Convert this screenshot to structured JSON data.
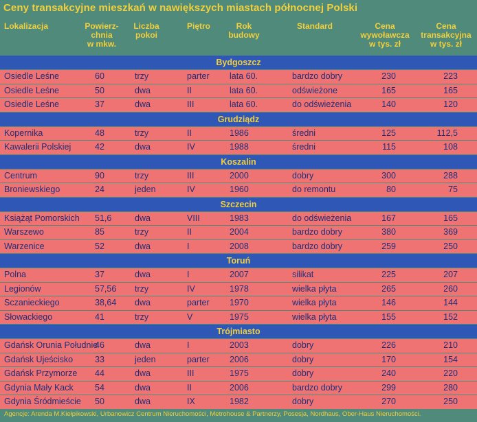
{
  "title": "Ceny transakcyjne mieszkań w nawiększych miastach północnej Polski",
  "headers": {
    "lokalizacja": [
      "Lokalizacja"
    ],
    "powierzchnia": [
      "Powierz-",
      "chnia",
      "w mkw."
    ],
    "liczba_pokoi": [
      "Liczba",
      "pokoi"
    ],
    "pietro": [
      "Piętro"
    ],
    "rok_budowy": [
      "Rok",
      "budowy"
    ],
    "standard": [
      "Standard"
    ],
    "cena_wywolawcza": [
      "Cena",
      "wywoławcza",
      "w tys. zł"
    ],
    "cena_transakcyjna": [
      "Cena",
      "transakcyjna",
      "w tys. zł"
    ]
  },
  "groups": [
    {
      "city": "Bydgoszcz",
      "rows": [
        [
          "Osiedle Leśne",
          "60",
          "trzy",
          "parter",
          "lata 60.",
          "bardzo dobry",
          "230",
          "223"
        ],
        [
          "Osiedle Leśne",
          "50",
          "dwa",
          "II",
          "lata 60.",
          "odświeżone",
          "165",
          "165"
        ],
        [
          "Osiedle Leśne",
          "37",
          "dwa",
          "III",
          "lata 60.",
          "do odświeżenia",
          "140",
          "120"
        ]
      ]
    },
    {
      "city": "Grudziądz",
      "rows": [
        [
          "Kopernika",
          "48",
          "trzy",
          "II",
          "1986",
          "średni",
          "125",
          "112,5"
        ],
        [
          "Kawalerii Polskiej",
          "42",
          "dwa",
          "IV",
          "1988",
          "średni",
          "115",
          "108"
        ]
      ]
    },
    {
      "city": "Koszalin",
      "rows": [
        [
          "Centrum",
          "90",
          "trzy",
          "III",
          "2000",
          "dobry",
          "300",
          "288"
        ],
        [
          "Broniewskiego",
          "24",
          "jeden",
          "IV",
          "1960",
          "do remontu",
          "80",
          "75"
        ]
      ]
    },
    {
      "city": "Szczecin",
      "rows": [
        [
          "Książąt Pomorskich",
          "51,6",
          "dwa",
          "VIII",
          "1983",
          "do odświeżenia",
          "167",
          "165"
        ],
        [
          "Warszewo",
          "85",
          "trzy",
          "II",
          "2004",
          "bardzo dobry",
          "380",
          "369"
        ],
        [
          "Warzenice",
          "52",
          "dwa",
          "I",
          "2008",
          "bardzo dobry",
          "259",
          "250"
        ]
      ]
    },
    {
      "city": "Toruń",
      "rows": [
        [
          "Polna",
          "37",
          "dwa",
          "I",
          "2007",
          "silikat",
          "225",
          "207"
        ],
        [
          "Legionów",
          "57,56",
          "trzy",
          "IV",
          "1978",
          "wielka płyta",
          "265",
          "260"
        ],
        [
          "Sczanieckiego",
          "38,64",
          "dwa",
          "parter",
          "1970",
          "wielka płyta",
          "146",
          "144"
        ],
        [
          "Słowackiego",
          "41",
          "trzy",
          "V",
          "1975",
          "wielka płyta",
          "155",
          "152"
        ]
      ]
    },
    {
      "city": "Trójmiasto",
      "rows": [
        [
          "Gdańsk Orunia Południe",
          "46",
          "dwa",
          "I",
          "2003",
          "dobry",
          "226",
          "210"
        ],
        [
          "Gdańsk Ujeścisko",
          "33",
          "jeden",
          "parter",
          "2006",
          "dobry",
          "170",
          "154"
        ],
        [
          "Gdańsk Przymorze",
          "44",
          "dwa",
          "III",
          "1975",
          "dobry",
          "240",
          "220"
        ],
        [
          "Gdynia Mały Kack",
          "54",
          "dwa",
          "II",
          "2006",
          "bardzo dobry",
          "299",
          "280"
        ],
        [
          "Gdynia Śródmieście",
          "50",
          "dwa",
          "IX",
          "1982",
          "dobry",
          "270",
          "250"
        ]
      ]
    }
  ],
  "footer": "Agencje: Arenda M.Kiełpikowski, Urbanowicz Centrum Nieruchomości, Metrohouse & Partnerzy, Posesja, Nordhaus, Ober-Haus Nieruchomości.",
  "colors": {
    "background": "#4f8a7a",
    "header_text": "#f2cf3c",
    "group_band": "#2f57b6",
    "row_band": "#f07373",
    "row_text": "#1e2f7a"
  }
}
